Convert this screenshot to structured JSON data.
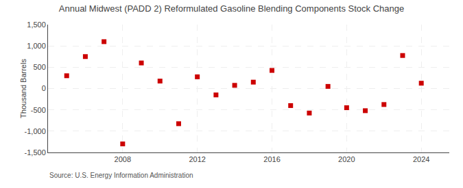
{
  "chart_data": {
    "type": "scatter",
    "title": "Annual Midwest (PADD 2) Reformulated Gasoline Blending Components Stock Change",
    "ylabel": "Thousand Barrels",
    "source": "Source: U.S. Energy Information Administration",
    "x": [
      2005,
      2006,
      2007,
      2008,
      2009,
      2010,
      2011,
      2012,
      2013,
      2014,
      2015,
      2016,
      2017,
      2018,
      2019,
      2020,
      2021,
      2022,
      2023,
      2024
    ],
    "values": [
      300,
      750,
      1100,
      -1300,
      600,
      175,
      -825,
      275,
      -150,
      75,
      150,
      425,
      -400,
      -575,
      50,
      -450,
      -520,
      -375,
      775,
      125
    ],
    "color": "#cc0000",
    "marker": "square",
    "xlim": [
      2004.0,
      2025.5
    ],
    "xticks": [
      2008,
      2012,
      2016,
      2020,
      2024
    ],
    "ylim": [
      -1500,
      1500
    ],
    "yticks": [
      {
        "value": -1500,
        "label": "-1,500"
      },
      {
        "value": -1000,
        "label": "-1,000"
      },
      -500,
      0,
      500,
      {
        "value": 1000,
        "label": "1,000"
      },
      {
        "value": 1500,
        "label": "1,500"
      }
    ],
    "grid": true
  }
}
